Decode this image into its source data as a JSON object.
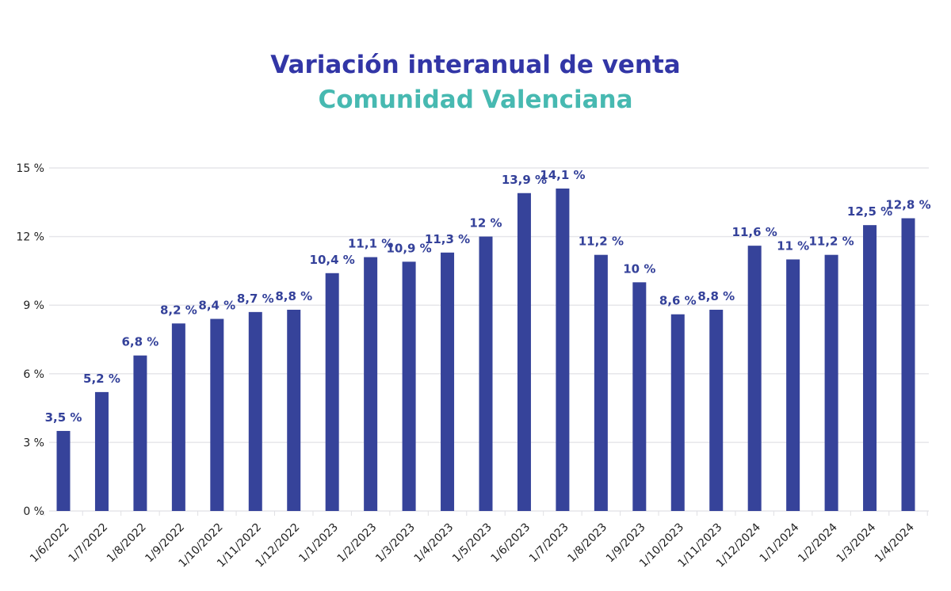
{
  "chart_data": {
    "type": "bar",
    "title": "Variación interanual de venta",
    "subtitle": "Comunidad Valenciana",
    "xlabel": "",
    "ylabel": "",
    "ylim": [
      0,
      15
    ],
    "yticks": [
      0,
      3,
      6,
      9,
      12,
      15
    ],
    "ytick_labels": [
      "0 %",
      "3 %",
      "6 %",
      "9 %",
      "12 %",
      "15 %"
    ],
    "grid": true,
    "legend": "none",
    "bar_color": "#36439a",
    "categories": [
      "1/6/2022",
      "1/7/2022",
      "1/8/2022",
      "1/9/2022",
      "1/10/2022",
      "1/11/2022",
      "1/12/2022",
      "1/1/2023",
      "1/2/2023",
      "1/3/2023",
      "1/4/2023",
      "1/5/2023",
      "1/6/2023",
      "1/7/2023",
      "1/8/2023",
      "1/9/2023",
      "1/10/2023",
      "1/11/2023",
      "1/12/2024",
      "1/1/2024",
      "1/2/2024",
      "1/3/2024",
      "1/4/2024"
    ],
    "values": [
      3.5,
      5.2,
      6.8,
      8.2,
      8.4,
      8.7,
      8.8,
      10.4,
      11.1,
      10.9,
      11.3,
      12,
      13.9,
      14.1,
      11.2,
      10,
      8.6,
      8.8,
      11.6,
      11,
      11.2,
      12.5,
      12.8
    ],
    "data_labels": [
      "3,5 %",
      "5,2 %",
      "6,8 %",
      "8,2 %",
      "8,4 %",
      "8,7 %",
      "8,8 %",
      "10,4 %",
      "11,1 %",
      "10,9 %",
      "11,3 %",
      "12 %",
      "13,9 %",
      "14,1 %",
      "11,2 %",
      "10 %",
      "8,6 %",
      "8,8 %",
      "11,6 %",
      "11 %",
      "11,2 %",
      "12,5 %",
      "12,8 %"
    ]
  }
}
